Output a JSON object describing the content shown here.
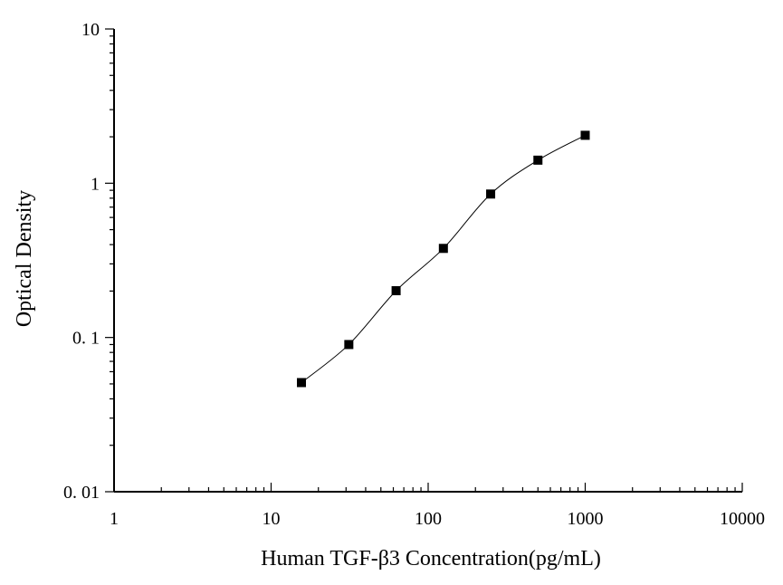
{
  "chart_data": {
    "type": "line",
    "xlabel": "Human TGF-β3 Concentration(pg/mL)",
    "ylabel": "Optical Density",
    "x_scale": "log",
    "y_scale": "log",
    "xlim": [
      1,
      10000
    ],
    "ylim": [
      0.01,
      10
    ],
    "x_ticks": [
      {
        "value": 1,
        "label": "1"
      },
      {
        "value": 10,
        "label": "10"
      },
      {
        "value": 100,
        "label": "100"
      },
      {
        "value": 1000,
        "label": "1000"
      },
      {
        "value": 10000,
        "label": "10000"
      }
    ],
    "y_ticks": [
      {
        "value": 0.01,
        "label": "0. 01"
      },
      {
        "value": 0.1,
        "label": "0. 1"
      },
      {
        "value": 1,
        "label": "1"
      },
      {
        "value": 10,
        "label": "10"
      }
    ],
    "grid": false,
    "marker": "square",
    "series": [
      {
        "x": [
          15.6,
          31.25,
          62.5,
          125,
          250,
          500,
          1000
        ],
        "y": [
          0.051,
          0.09,
          0.201,
          0.378,
          0.851,
          1.411,
          2.045
        ]
      }
    ],
    "colors": {
      "line": "#000000",
      "marker": "#000000",
      "axis": "#000000"
    }
  }
}
